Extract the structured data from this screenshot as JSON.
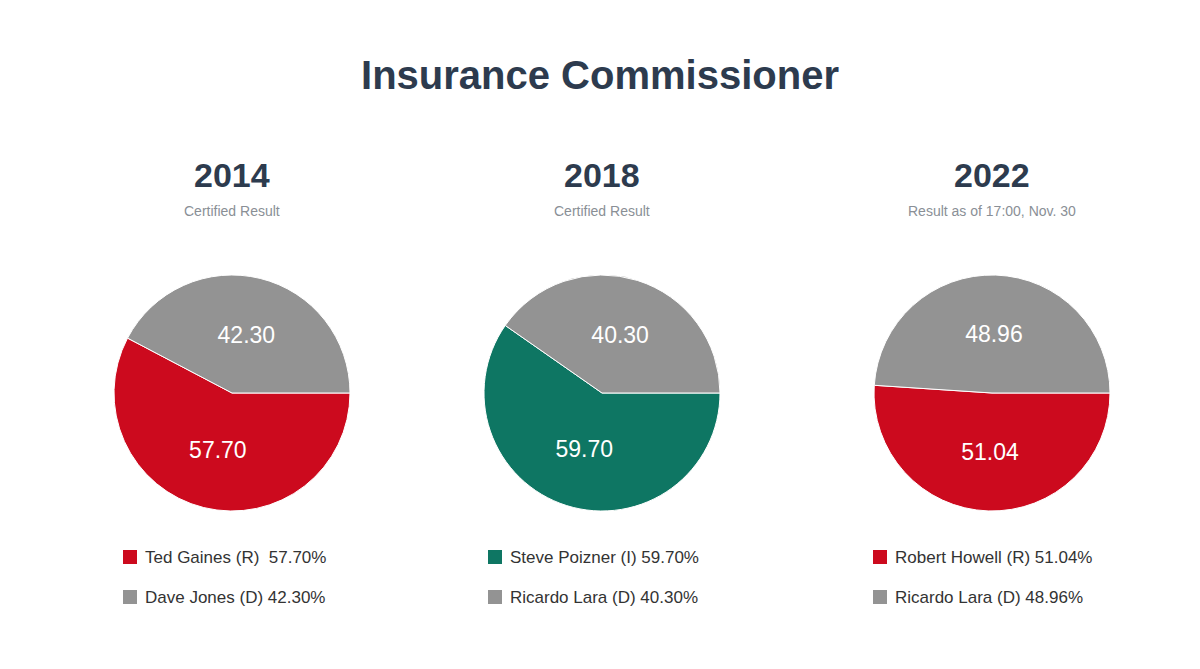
{
  "title": "Insurance Commissioner",
  "chart_data": [
    {
      "type": "pie",
      "title": "2014",
      "subtitle": "Certified Result",
      "categories": [
        "Ted Gaines (R)  57.70%",
        "Dave Jones (D) 42.30%"
      ],
      "values": [
        57.7,
        42.3
      ],
      "value_labels": [
        "57.70",
        "42.30"
      ],
      "colors": [
        "#cc0a1e",
        "#939393"
      ],
      "data_labels": true
    },
    {
      "type": "pie",
      "title": "2018",
      "subtitle": "Certified Result",
      "categories": [
        "Steve Poizner (I) 59.70%",
        "Ricardo Lara (D) 40.30%"
      ],
      "values": [
        59.7,
        40.3
      ],
      "value_labels": [
        "59.70",
        "40.30"
      ],
      "colors": [
        "#0e7663",
        "#939393"
      ],
      "data_labels": true
    },
    {
      "type": "pie",
      "title": "2022",
      "subtitle": "Result as of 17:00, Nov. 30",
      "categories": [
        "Robert Howell (R) 51.04%",
        "Ricardo Lara (D) 48.96%"
      ],
      "values": [
        51.04,
        48.96
      ],
      "value_labels": [
        "51.04",
        "48.96"
      ],
      "colors": [
        "#cc0a1e",
        "#939393"
      ],
      "data_labels": true
    }
  ]
}
